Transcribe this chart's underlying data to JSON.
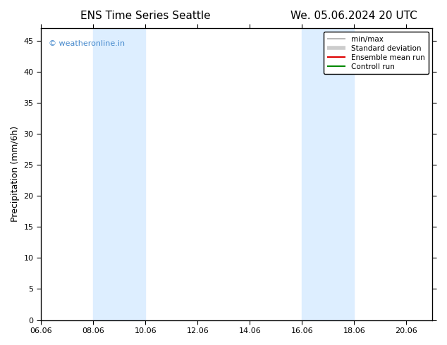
{
  "title_left": "ENS Time Series Seattle",
  "title_right": "We. 05.06.2024 20 UTC",
  "xlabel": "",
  "ylabel": "Precipitation (mm/6h)",
  "xlim": [
    0,
    15
  ],
  "ylim": [
    0,
    47
  ],
  "yticks": [
    0,
    5,
    10,
    15,
    20,
    25,
    30,
    35,
    40,
    45
  ],
  "xtick_labels": [
    "06.06",
    "08.06",
    "10.06",
    "12.06",
    "14.06",
    "16.06",
    "18.06",
    "20.06"
  ],
  "xtick_positions": [
    0,
    2,
    4,
    6,
    8,
    10,
    12,
    14
  ],
  "background_color": "#ffffff",
  "plot_bg_color": "#ffffff",
  "shaded_bands": [
    {
      "x_start": 2,
      "x_end": 4,
      "color": "#ddeeff"
    },
    {
      "x_start": 10,
      "x_end": 12,
      "color": "#ddeeff"
    }
  ],
  "watermark_text": "© weatheronline.in",
  "watermark_color": "#4488cc",
  "legend_entries": [
    {
      "label": "min/max",
      "color": "#aaaaaa",
      "linestyle": "-",
      "linewidth": 1.2
    },
    {
      "label": "Standard deviation",
      "color": "#cccccc",
      "linestyle": "-",
      "linewidth": 4
    },
    {
      "label": "Ensemble mean run",
      "color": "#dd0000",
      "linestyle": "-",
      "linewidth": 1.5
    },
    {
      "label": "Controll run",
      "color": "#008800",
      "linestyle": "-",
      "linewidth": 1.5
    }
  ],
  "font_family": "DejaVu Sans",
  "title_fontsize": 11,
  "axis_fontsize": 9,
  "tick_fontsize": 8
}
